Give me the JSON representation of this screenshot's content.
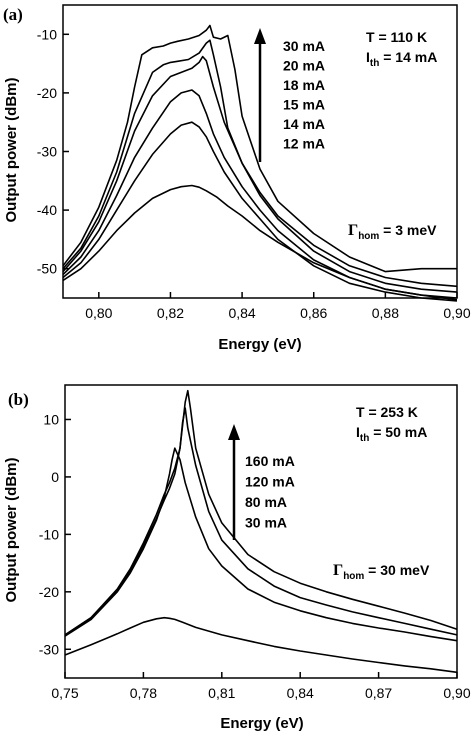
{
  "chart_data": [
    {
      "type": "line",
      "panel_label": "(a)",
      "xlabel": "Energy (eV)",
      "ylabel": "Output power (dBm)",
      "xlim": [
        0.79,
        0.9
      ],
      "ylim": [
        -55,
        -5
      ],
      "xticks": [
        0.8,
        0.82,
        0.84,
        0.86,
        0.88,
        0.9
      ],
      "xtick_labels": [
        "0,80",
        "0,82",
        "0,84",
        "0,86",
        "0,88",
        "0,90"
      ],
      "yticks": [
        -50,
        -40,
        -30,
        -20,
        -10
      ],
      "ytick_labels": [
        "-50",
        "-40",
        "-30",
        "-20",
        "-10"
      ],
      "annotations": {
        "temperature": "T = 110 K",
        "ith_prefix": "I",
        "ith_sub": "th",
        "ith_value": " = 14 mA",
        "gamma_symbol": "Γ",
        "gamma_sub": "hom",
        "gamma_value": " = 3 meV"
      },
      "legend": [
        "30 mA",
        "20 mA",
        "18 mA",
        "15 mA",
        "14 mA",
        "12 mA"
      ],
      "series": [
        {
          "name": "30 mA",
          "x": [
            0.79,
            0.795,
            0.8,
            0.805,
            0.808,
            0.81,
            0.812,
            0.815,
            0.818,
            0.82,
            0.822,
            0.825,
            0.828,
            0.83,
            0.831,
            0.832,
            0.834,
            0.836,
            0.838,
            0.84,
            0.845,
            0.85,
            0.86,
            0.87,
            0.88,
            0.89,
            0.9
          ],
          "y": [
            -49.5,
            -45.5,
            -39.5,
            -31.5,
            -25,
            -19,
            -13.5,
            -12.3,
            -12.0,
            -11.5,
            -11.2,
            -10.8,
            -10.2,
            -9.3,
            -8.5,
            -10.5,
            -10.8,
            -10.2,
            -16,
            -24,
            -33,
            -38.5,
            -44,
            -48,
            -50.5,
            -50,
            -50
          ]
        },
        {
          "name": "20 mA",
          "x": [
            0.79,
            0.795,
            0.8,
            0.805,
            0.81,
            0.815,
            0.818,
            0.82,
            0.822,
            0.825,
            0.828,
            0.83,
            0.831,
            0.832,
            0.834,
            0.836,
            0.84,
            0.845,
            0.85,
            0.86,
            0.87,
            0.88,
            0.89,
            0.9
          ],
          "y": [
            -50,
            -46.5,
            -41,
            -33.5,
            -23.5,
            -16.5,
            -15.2,
            -14.8,
            -14.6,
            -14.3,
            -13.2,
            -11.5,
            -11.0,
            -13.5,
            -19,
            -26,
            -32,
            -37,
            -41,
            -46,
            -49.5,
            -51.5,
            -52.5,
            -53
          ]
        },
        {
          "name": "18 mA",
          "x": [
            0.79,
            0.795,
            0.8,
            0.805,
            0.81,
            0.815,
            0.82,
            0.823,
            0.826,
            0.828,
            0.829,
            0.83,
            0.832,
            0.835,
            0.84,
            0.845,
            0.85,
            0.86,
            0.87,
            0.88,
            0.89,
            0.9
          ],
          "y": [
            -50.5,
            -47,
            -42,
            -35,
            -26.5,
            -20.5,
            -17.2,
            -16.5,
            -15.8,
            -14.8,
            -13.8,
            -14.5,
            -19,
            -25,
            -32,
            -37.5,
            -41.5,
            -47,
            -50.5,
            -52.5,
            -53.5,
            -54
          ]
        },
        {
          "name": "15 mA",
          "x": [
            0.79,
            0.795,
            0.8,
            0.805,
            0.81,
            0.815,
            0.82,
            0.823,
            0.826,
            0.828,
            0.83,
            0.832,
            0.835,
            0.84,
            0.845,
            0.85,
            0.86,
            0.87,
            0.88,
            0.89,
            0.9
          ],
          "y": [
            -51,
            -48,
            -43.5,
            -37.5,
            -31,
            -26,
            -21.5,
            -20,
            -19.5,
            -20.5,
            -23.5,
            -27,
            -31,
            -36,
            -40,
            -43.5,
            -48.5,
            -51.5,
            -53.5,
            -54.5,
            -55
          ]
        },
        {
          "name": "14 mA",
          "x": [
            0.79,
            0.795,
            0.8,
            0.805,
            0.81,
            0.815,
            0.82,
            0.823,
            0.826,
            0.828,
            0.83,
            0.832,
            0.835,
            0.84,
            0.845,
            0.85,
            0.86,
            0.87,
            0.88,
            0.89,
            0.9
          ],
          "y": [
            -51.5,
            -49,
            -45,
            -40,
            -35,
            -30.5,
            -27,
            -25.5,
            -25,
            -25.8,
            -27.5,
            -30,
            -33.5,
            -38,
            -41.5,
            -45,
            -49.5,
            -52.5,
            -54,
            -55,
            -55.5
          ]
        },
        {
          "name": "12 mA",
          "x": [
            0.79,
            0.795,
            0.8,
            0.805,
            0.81,
            0.815,
            0.82,
            0.823,
            0.826,
            0.828,
            0.83,
            0.833,
            0.836,
            0.84,
            0.845,
            0.85,
            0.86,
            0.87,
            0.88,
            0.89,
            0.9
          ],
          "y": [
            -52,
            -50,
            -47,
            -43.5,
            -40.5,
            -38,
            -36.5,
            -36,
            -35.8,
            -36.1,
            -36.7,
            -37.8,
            -39.3,
            -41,
            -43.5,
            -45.5,
            -49,
            -51.5,
            -53.5,
            -54.5,
            -55.3
          ]
        }
      ]
    },
    {
      "type": "line",
      "panel_label": "(b)",
      "xlabel": "Energy (eV)",
      "ylabel": "Output power (dBm)",
      "xlim": [
        0.75,
        0.9
      ],
      "ylim": [
        -35,
        16
      ],
      "xticks": [
        0.75,
        0.78,
        0.81,
        0.84,
        0.87,
        0.9
      ],
      "xtick_labels": [
        "0,75",
        "0,78",
        "0,81",
        "0,84",
        "0,87",
        "0,90"
      ],
      "yticks": [
        -30,
        -20,
        -10,
        0,
        10
      ],
      "ytick_labels": [
        "-30",
        "-20",
        "-10",
        "0",
        "10"
      ],
      "annotations": {
        "temperature": "T = 253 K",
        "ith_prefix": "I",
        "ith_sub": "th",
        "ith_value": " = 50 mA",
        "gamma_symbol": "Γ",
        "gamma_sub": "hom",
        "gamma_value": " = 30 meV"
      },
      "legend": [
        "160 mA",
        "120 mA",
        "80 mA",
        "30 mA"
      ],
      "series": [
        {
          "name": "160 mA",
          "x": [
            0.75,
            0.76,
            0.77,
            0.775,
            0.78,
            0.785,
            0.788,
            0.79,
            0.792,
            0.794,
            0.795,
            0.796,
            0.797,
            0.798,
            0.8,
            0.805,
            0.81,
            0.82,
            0.83,
            0.84,
            0.85,
            0.86,
            0.87,
            0.88,
            0.89,
            0.9
          ],
          "y": [
            -27.5,
            -24.5,
            -19.5,
            -16,
            -11.5,
            -6.5,
            -3,
            -1,
            1.5,
            5,
            9,
            13,
            15,
            12,
            5,
            -3,
            -8,
            -13.5,
            -16.5,
            -18.5,
            -20,
            -21.3,
            -22.5,
            -23.7,
            -25,
            -26.5
          ]
        },
        {
          "name": "120 mA",
          "x": [
            0.75,
            0.76,
            0.77,
            0.775,
            0.78,
            0.785,
            0.788,
            0.79,
            0.792,
            0.794,
            0.795,
            0.796,
            0.797,
            0.8,
            0.805,
            0.81,
            0.82,
            0.83,
            0.84,
            0.85,
            0.86,
            0.87,
            0.88,
            0.89,
            0.9
          ],
          "y": [
            -27.5,
            -24.5,
            -19.7,
            -16.3,
            -12,
            -7.2,
            -4,
            -2,
            0.5,
            5,
            9.5,
            12,
            8.5,
            2,
            -6,
            -11,
            -16,
            -19,
            -21,
            -22.3,
            -23.5,
            -24.5,
            -25.5,
            -26.5,
            -27.5
          ]
        },
        {
          "name": "80 mA",
          "x": [
            0.75,
            0.76,
            0.77,
            0.775,
            0.78,
            0.785,
            0.788,
            0.79,
            0.791,
            0.792,
            0.794,
            0.796,
            0.8,
            0.805,
            0.81,
            0.82,
            0.83,
            0.84,
            0.85,
            0.86,
            0.87,
            0.88,
            0.89,
            0.9
          ],
          "y": [
            -27.7,
            -24.8,
            -20,
            -16.7,
            -12.5,
            -7.5,
            -3.5,
            0.5,
            3,
            5,
            3,
            -1,
            -7,
            -12.5,
            -15.5,
            -19.5,
            -21.8,
            -23.3,
            -24.5,
            -25.5,
            -26.3,
            -27,
            -27.8,
            -28.5
          ]
        },
        {
          "name": "30 mA",
          "x": [
            0.75,
            0.76,
            0.77,
            0.775,
            0.78,
            0.785,
            0.788,
            0.79,
            0.792,
            0.795,
            0.8,
            0.81,
            0.82,
            0.83,
            0.84,
            0.85,
            0.86,
            0.87,
            0.88,
            0.89,
            0.9
          ],
          "y": [
            -31,
            -29.2,
            -27.3,
            -26.3,
            -25.3,
            -24.7,
            -24.5,
            -24.6,
            -24.8,
            -25.3,
            -26.2,
            -27.5,
            -28.5,
            -29.5,
            -30.3,
            -31,
            -31.7,
            -32.3,
            -32.9,
            -33.4,
            -34
          ]
        }
      ]
    }
  ]
}
